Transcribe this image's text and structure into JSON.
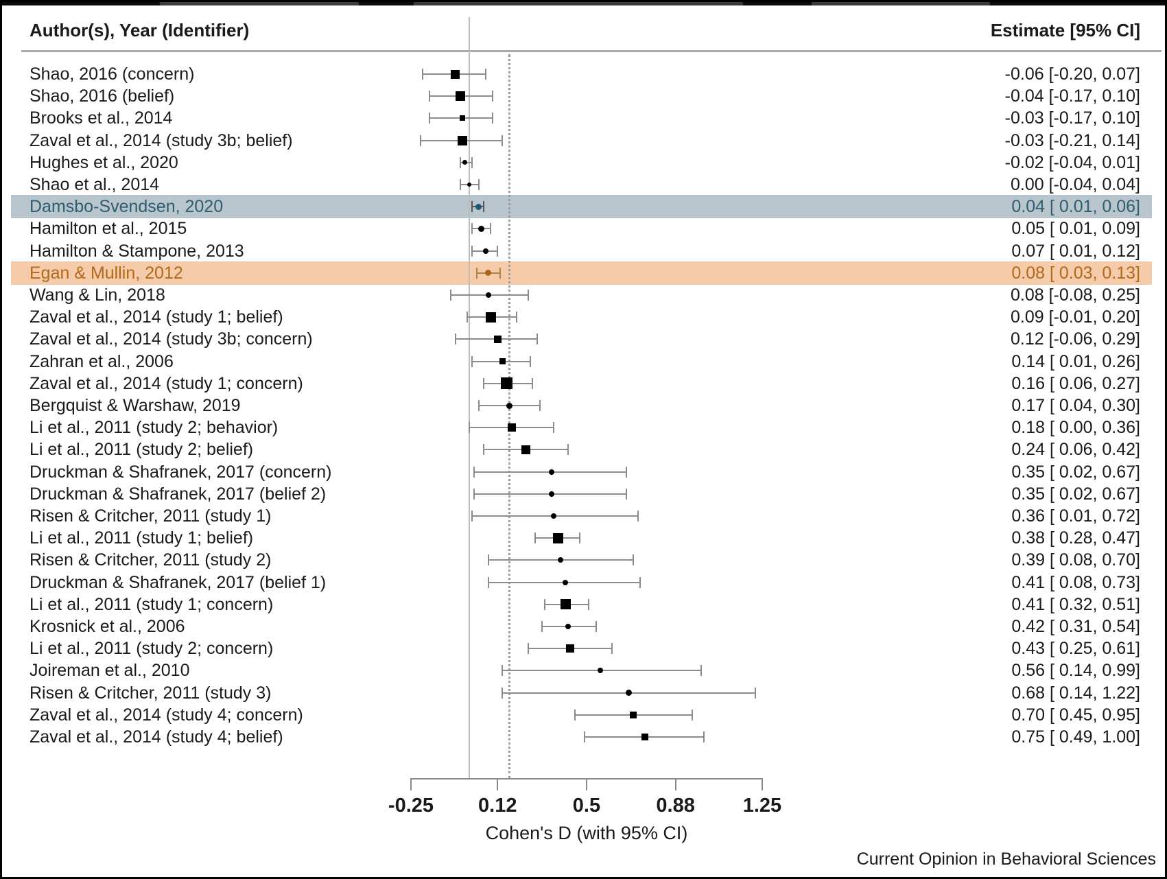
{
  "figure": {
    "header_left": "Author(s), Year (Identifier)",
    "header_right": "Estimate [95% CI]",
    "footer": "Current Opinion in Behavioral Sciences"
  },
  "colors": {
    "highlight_blue_band": "#b9c5cc",
    "highlight_blue_text": "#2d5d70",
    "highlight_blue_marker": "#1d5a70",
    "highlight_blue_ci": "#565656",
    "highlight_orange_band": "#f5cbaa",
    "highlight_orange_text": "#b06a1a",
    "highlight_orange_marker": "#a9651a",
    "highlight_orange_ci": "#b08445",
    "ci_gray": "#8c8c8c",
    "zero_line": "#bdbdbd",
    "dotted_line": "#9b9b9b",
    "text": "#1a1a1a"
  },
  "chart_data": {
    "type": "scatter",
    "subtype": "forest_plot",
    "xlabel": "Cohen's D (with 95% CI)",
    "xlim": [
      -0.25,
      1.25
    ],
    "x_ticks": [
      {
        "value": -0.25,
        "label": "-0.25"
      },
      {
        "value": 0.12,
        "label": "0.12"
      },
      {
        "value": 0.5,
        "label": "0.5"
      },
      {
        "value": 0.88,
        "label": "0.88"
      },
      {
        "value": 1.25,
        "label": "1.25"
      }
    ],
    "zero_line_x": 0,
    "dotted_line_x": 0.17,
    "grid": false,
    "studies": [
      {
        "label": "Shao, 2016 (concern)",
        "estimate": -0.06,
        "ci_low": -0.2,
        "ci_high": 0.07,
        "text": "-0.06 [-0.20, 0.07]",
        "marker": "square",
        "size": 13,
        "highlight": null
      },
      {
        "label": "Shao, 2016 (belief)",
        "estimate": -0.04,
        "ci_low": -0.17,
        "ci_high": 0.1,
        "text": "-0.04 [-0.17, 0.10]",
        "marker": "square",
        "size": 14,
        "highlight": null
      },
      {
        "label": "Brooks et al., 2014",
        "estimate": -0.03,
        "ci_low": -0.17,
        "ci_high": 0.1,
        "text": "-0.03 [-0.17, 0.10]",
        "marker": "square",
        "size": 8,
        "highlight": null
      },
      {
        "label": "Zaval et al., 2014 (study 3b; belief)",
        "estimate": -0.03,
        "ci_low": -0.21,
        "ci_high": 0.14,
        "text": "-0.03 [-0.21, 0.14]",
        "marker": "square",
        "size": 14,
        "highlight": null
      },
      {
        "label": "Hughes et al., 2020",
        "estimate": -0.02,
        "ci_low": -0.04,
        "ci_high": 0.01,
        "text": "-0.02 [-0.04, 0.01]",
        "marker": "dot",
        "size": 7,
        "highlight": null
      },
      {
        "label": "Shao et al., 2014",
        "estimate": 0.0,
        "ci_low": -0.04,
        "ci_high": 0.04,
        "text": "0.00 [-0.04, 0.04]",
        "marker": "dot",
        "size": 6,
        "highlight": null
      },
      {
        "label": "Damsbo-Svendsen, 2020",
        "estimate": 0.04,
        "ci_low": 0.01,
        "ci_high": 0.06,
        "text": "0.04 [ 0.01, 0.06]",
        "marker": "dot",
        "size": 9,
        "highlight": "blue"
      },
      {
        "label": "Hamilton et al., 2015",
        "estimate": 0.05,
        "ci_low": 0.01,
        "ci_high": 0.09,
        "text": "0.05 [ 0.01, 0.09]",
        "marker": "dot",
        "size": 9,
        "highlight": null
      },
      {
        "label": "Hamilton & Stampone, 2013",
        "estimate": 0.07,
        "ci_low": 0.01,
        "ci_high": 0.12,
        "text": "0.07 [ 0.01, 0.12]",
        "marker": "dot",
        "size": 8,
        "highlight": null
      },
      {
        "label": "Egan & Mullin, 2012",
        "estimate": 0.08,
        "ci_low": 0.03,
        "ci_high": 0.13,
        "text": "0.08 [ 0.03, 0.13]",
        "marker": "dot",
        "size": 9,
        "highlight": "orange"
      },
      {
        "label": "Wang & Lin, 2018",
        "estimate": 0.08,
        "ci_low": -0.08,
        "ci_high": 0.25,
        "text": "0.08 [-0.08, 0.25]",
        "marker": "dot",
        "size": 8,
        "highlight": null
      },
      {
        "label": "Zaval et al., 2014 (study 1; belief)",
        "estimate": 0.09,
        "ci_low": -0.01,
        "ci_high": 0.2,
        "text": "0.09 [-0.01, 0.20]",
        "marker": "square",
        "size": 15,
        "highlight": null
      },
      {
        "label": "Zaval et al., 2014 (study 3b; concern)",
        "estimate": 0.12,
        "ci_low": -0.06,
        "ci_high": 0.29,
        "text": "0.12 [-0.06, 0.29]",
        "marker": "square",
        "size": 11,
        "highlight": null
      },
      {
        "label": "Zahran et al., 2006",
        "estimate": 0.14,
        "ci_low": 0.01,
        "ci_high": 0.26,
        "text": "0.14 [ 0.01, 0.26]",
        "marker": "square",
        "size": 9,
        "highlight": null
      },
      {
        "label": "Zaval et al., 2014 (study 1; concern)",
        "estimate": 0.16,
        "ci_low": 0.06,
        "ci_high": 0.27,
        "text": "0.16 [ 0.06, 0.27]",
        "marker": "square",
        "size": 17,
        "highlight": null
      },
      {
        "label": "Bergquist & Warshaw, 2019",
        "estimate": 0.17,
        "ci_low": 0.04,
        "ci_high": 0.3,
        "text": "0.17 [ 0.04, 0.30]",
        "marker": "dot",
        "size": 9,
        "highlight": null
      },
      {
        "label": "Li et al., 2011 (study 2; behavior)",
        "estimate": 0.18,
        "ci_low": 0.0,
        "ci_high": 0.36,
        "text": "0.18 [ 0.00, 0.36]",
        "marker": "square",
        "size": 12,
        "highlight": null
      },
      {
        "label": "Li et al., 2011 (study 2; belief)",
        "estimate": 0.24,
        "ci_low": 0.06,
        "ci_high": 0.42,
        "text": "0.24 [ 0.06, 0.42]",
        "marker": "square",
        "size": 13,
        "highlight": null
      },
      {
        "label": "Druckman & Shafranek, 2017 (concern)",
        "estimate": 0.35,
        "ci_low": 0.02,
        "ci_high": 0.67,
        "text": "0.35 [ 0.02, 0.67]",
        "marker": "dot",
        "size": 8,
        "highlight": null
      },
      {
        "label": "Druckman & Shafranek, 2017 (belief 2)",
        "estimate": 0.35,
        "ci_low": 0.02,
        "ci_high": 0.67,
        "text": "0.35 [ 0.02, 0.67]",
        "marker": "dot",
        "size": 8,
        "highlight": null
      },
      {
        "label": "Risen & Critcher, 2011 (study 1)",
        "estimate": 0.36,
        "ci_low": 0.01,
        "ci_high": 0.72,
        "text": "0.36 [ 0.01, 0.72]",
        "marker": "dot",
        "size": 8,
        "highlight": null
      },
      {
        "label": "Li et al., 2011 (study 1; belief)",
        "estimate": 0.38,
        "ci_low": 0.28,
        "ci_high": 0.47,
        "text": "0.38 [ 0.28, 0.47]",
        "marker": "square",
        "size": 15,
        "highlight": null
      },
      {
        "label": "Risen & Critcher, 2011 (study 2)",
        "estimate": 0.39,
        "ci_low": 0.08,
        "ci_high": 0.7,
        "text": "0.39 [ 0.08, 0.70]",
        "marker": "dot",
        "size": 8,
        "highlight": null
      },
      {
        "label": "Druckman & Shafranek, 2017 (belief 1)",
        "estimate": 0.41,
        "ci_low": 0.08,
        "ci_high": 0.73,
        "text": "0.41 [ 0.08, 0.73]",
        "marker": "dot",
        "size": 8,
        "highlight": null
      },
      {
        "label": "Li et al., 2011 (study 1; concern)",
        "estimate": 0.41,
        "ci_low": 0.32,
        "ci_high": 0.51,
        "text": "0.41 [ 0.32, 0.51]",
        "marker": "square",
        "size": 15,
        "highlight": null
      },
      {
        "label": "Krosnick et al., 2006",
        "estimate": 0.42,
        "ci_low": 0.31,
        "ci_high": 0.54,
        "text": "0.42 [ 0.31, 0.54]",
        "marker": "dot",
        "size": 8,
        "highlight": null
      },
      {
        "label": "Li et al., 2011 (study 2; concern)",
        "estimate": 0.43,
        "ci_low": 0.25,
        "ci_high": 0.61,
        "text": "0.43 [ 0.25, 0.61]",
        "marker": "square",
        "size": 12,
        "highlight": null
      },
      {
        "label": "Joireman et al., 2010",
        "estimate": 0.56,
        "ci_low": 0.14,
        "ci_high": 0.99,
        "text": "0.56 [ 0.14, 0.99]",
        "marker": "dot",
        "size": 8,
        "highlight": null
      },
      {
        "label": "Risen & Critcher, 2011 (study 3)",
        "estimate": 0.68,
        "ci_low": 0.14,
        "ci_high": 1.22,
        "text": "0.68 [ 0.14, 1.22]",
        "marker": "dot",
        "size": 9,
        "highlight": null
      },
      {
        "label": "Zaval et al., 2014 (study 4; concern)",
        "estimate": 0.7,
        "ci_low": 0.45,
        "ci_high": 0.95,
        "text": "0.70 [ 0.45, 0.95]",
        "marker": "square",
        "size": 10,
        "highlight": null
      },
      {
        "label": "Zaval et al., 2014 (study 4; belief)",
        "estimate": 0.75,
        "ci_low": 0.49,
        "ci_high": 1.0,
        "text": "0.75 [ 0.49, 1.00]",
        "marker": "square",
        "size": 10,
        "highlight": null
      }
    ]
  }
}
